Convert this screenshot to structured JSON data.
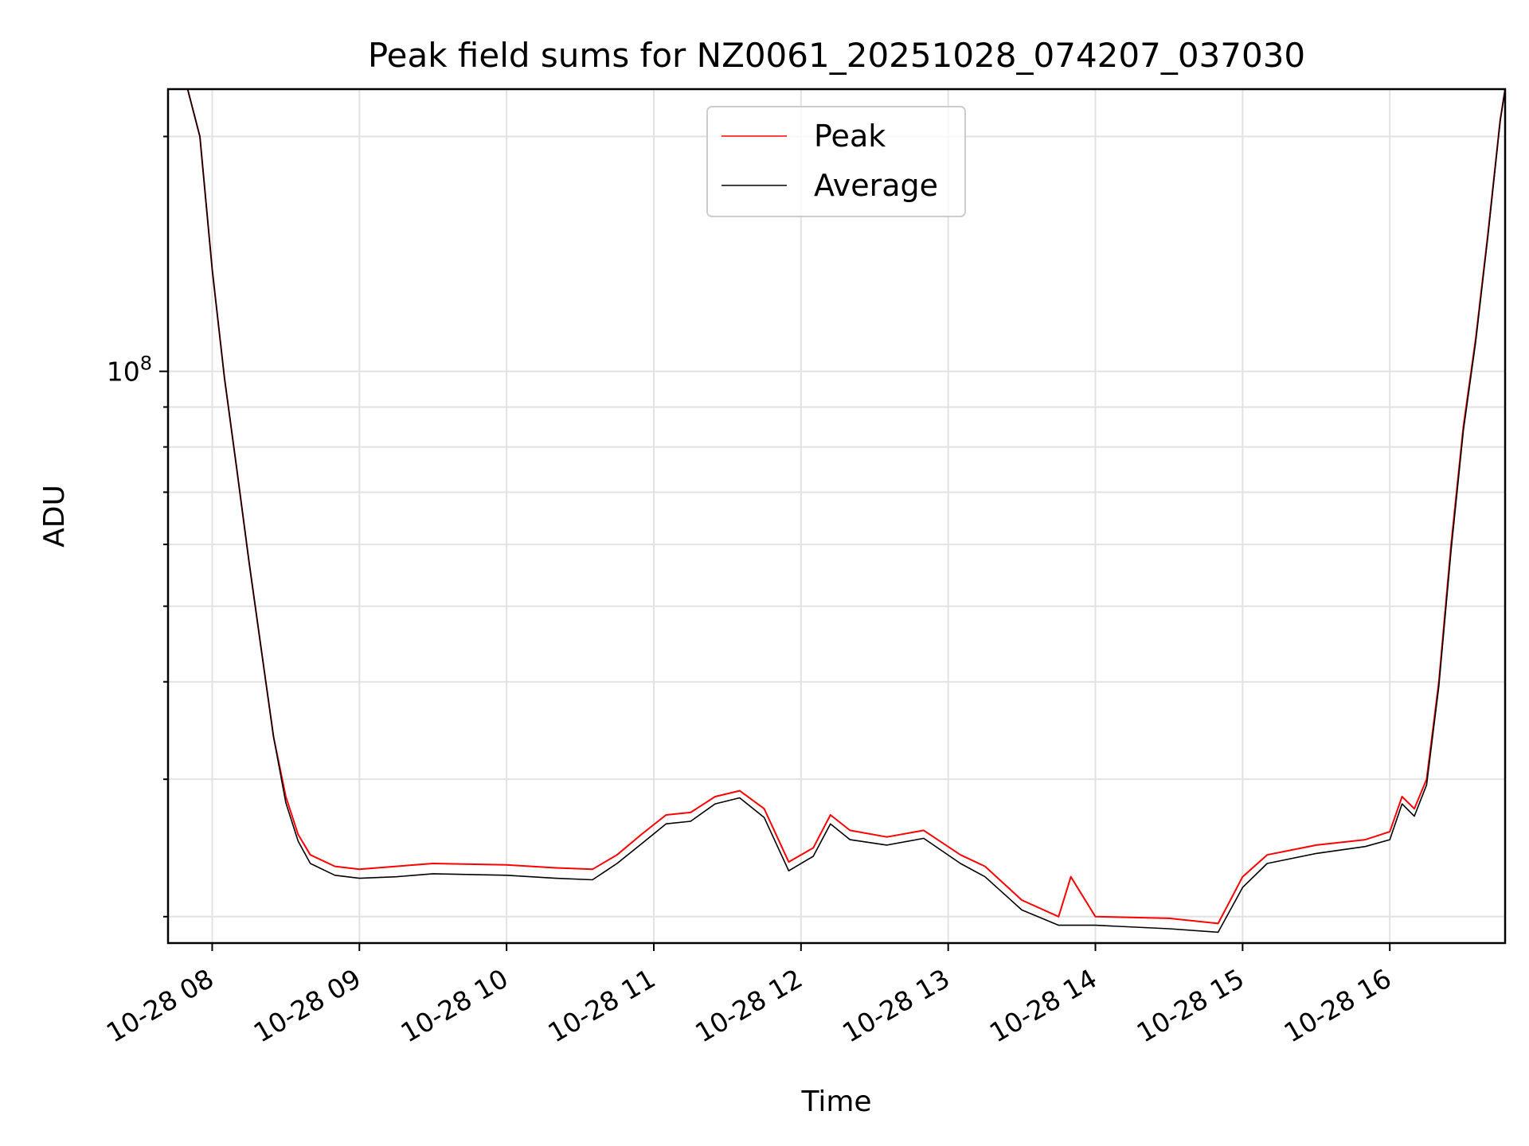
{
  "chart_data": {
    "type": "line",
    "title": "Peak field sums for NZ0061_20251028_074207_037030",
    "xlabel": "Time",
    "ylabel": "ADU",
    "y_scale": "log",
    "ylim": [
      18500000,
      230000000
    ],
    "xlim": [
      "2025-10-28T07:42:00",
      "2025-10-28T16:47:00"
    ],
    "x_ticks": [
      {
        "x": "2025-10-28T08:00",
        "label": "10-28 08"
      },
      {
        "x": "2025-10-28T09:00",
        "label": "10-28 09"
      },
      {
        "x": "2025-10-28T10:00",
        "label": "10-28 10"
      },
      {
        "x": "2025-10-28T11:00",
        "label": "10-28 11"
      },
      {
        "x": "2025-10-28T12:00",
        "label": "10-28 12"
      },
      {
        "x": "2025-10-28T13:00",
        "label": "10-28 13"
      },
      {
        "x": "2025-10-28T14:00",
        "label": "10-28 14"
      },
      {
        "x": "2025-10-28T15:00",
        "label": "10-28 15"
      },
      {
        "x": "2025-10-28T16:00",
        "label": "10-28 16"
      }
    ],
    "y_major_ticks": [
      {
        "value": 100000000,
        "base": "10",
        "exponent": "8"
      }
    ],
    "y_minor_ticks": [
      20000000,
      30000000,
      40000000,
      50000000,
      60000000,
      70000000,
      80000000,
      90000000,
      200000000
    ],
    "grid": true,
    "legend": {
      "position": "upper center"
    },
    "series": [
      {
        "name": "Peak",
        "color": "#ff0000",
        "points": [
          [
            "2025-10-28T07:50",
            230000000
          ],
          [
            "2025-10-28T07:55",
            200000000
          ],
          [
            "2025-10-28T08:00",
            135000000
          ],
          [
            "2025-10-28T08:05",
            98000000
          ],
          [
            "2025-10-28T08:10",
            75000000
          ],
          [
            "2025-10-28T08:15",
            57000000
          ],
          [
            "2025-10-28T08:20",
            44000000
          ],
          [
            "2025-10-28T08:25",
            34000000
          ],
          [
            "2025-10-28T08:30",
            28500000
          ],
          [
            "2025-10-28T08:35",
            25500000
          ],
          [
            "2025-10-28T08:40",
            24000000
          ],
          [
            "2025-10-28T08:50",
            23200000
          ],
          [
            "2025-10-28T09:00",
            23000000
          ],
          [
            "2025-10-28T09:15",
            23200000
          ],
          [
            "2025-10-28T09:30",
            23400000
          ],
          [
            "2025-10-28T10:00",
            23300000
          ],
          [
            "2025-10-28T10:20",
            23100000
          ],
          [
            "2025-10-28T10:35",
            23000000
          ],
          [
            "2025-10-28T10:45",
            24000000
          ],
          [
            "2025-10-28T10:55",
            25500000
          ],
          [
            "2025-10-28T11:05",
            27000000
          ],
          [
            "2025-10-28T11:15",
            27200000
          ],
          [
            "2025-10-28T11:25",
            28500000
          ],
          [
            "2025-10-28T11:35",
            29000000
          ],
          [
            "2025-10-28T11:45",
            27500000
          ],
          [
            "2025-10-28T11:55",
            23500000
          ],
          [
            "2025-10-28T12:05",
            24500000
          ],
          [
            "2025-10-28T12:12",
            27000000
          ],
          [
            "2025-10-28T12:20",
            25800000
          ],
          [
            "2025-10-28T12:35",
            25300000
          ],
          [
            "2025-10-28T12:50",
            25800000
          ],
          [
            "2025-10-28T13:05",
            24000000
          ],
          [
            "2025-10-28T13:15",
            23200000
          ],
          [
            "2025-10-28T13:30",
            21000000
          ],
          [
            "2025-10-28T13:45",
            20000000
          ],
          [
            "2025-10-28T13:50",
            22500000
          ],
          [
            "2025-10-28T14:00",
            20000000
          ],
          [
            "2025-10-28T14:30",
            19900000
          ],
          [
            "2025-10-28T14:50",
            19600000
          ],
          [
            "2025-10-28T15:00",
            22500000
          ],
          [
            "2025-10-28T15:10",
            24000000
          ],
          [
            "2025-10-28T15:30",
            24700000
          ],
          [
            "2025-10-28T15:50",
            25100000
          ],
          [
            "2025-10-28T16:00",
            25700000
          ],
          [
            "2025-10-28T16:05",
            28500000
          ],
          [
            "2025-10-28T16:10",
            27500000
          ],
          [
            "2025-10-28T16:15",
            30000000
          ],
          [
            "2025-10-28T16:20",
            40000000
          ],
          [
            "2025-10-28T16:25",
            60000000
          ],
          [
            "2025-10-28T16:30",
            85000000
          ],
          [
            "2025-10-28T16:35",
            110000000
          ],
          [
            "2025-10-28T16:40",
            150000000
          ],
          [
            "2025-10-28T16:45",
            210000000
          ],
          [
            "2025-10-28T16:47",
            230000000
          ]
        ]
      },
      {
        "name": "Average",
        "color": "#000000",
        "points": [
          [
            "2025-10-28T07:50",
            230000000
          ],
          [
            "2025-10-28T07:55",
            200000000
          ],
          [
            "2025-10-28T08:00",
            135000000
          ],
          [
            "2025-10-28T08:05",
            98000000
          ],
          [
            "2025-10-28T08:10",
            75000000
          ],
          [
            "2025-10-28T08:15",
            57000000
          ],
          [
            "2025-10-28T08:20",
            44000000
          ],
          [
            "2025-10-28T08:25",
            34000000
          ],
          [
            "2025-10-28T08:30",
            28000000
          ],
          [
            "2025-10-28T08:35",
            25000000
          ],
          [
            "2025-10-28T08:40",
            23400000
          ],
          [
            "2025-10-28T08:50",
            22600000
          ],
          [
            "2025-10-28T09:00",
            22400000
          ],
          [
            "2025-10-28T09:15",
            22500000
          ],
          [
            "2025-10-28T09:30",
            22700000
          ],
          [
            "2025-10-28T10:00",
            22600000
          ],
          [
            "2025-10-28T10:20",
            22400000
          ],
          [
            "2025-10-28T10:35",
            22300000
          ],
          [
            "2025-10-28T10:45",
            23400000
          ],
          [
            "2025-10-28T10:55",
            24800000
          ],
          [
            "2025-10-28T11:05",
            26300000
          ],
          [
            "2025-10-28T11:15",
            26500000
          ],
          [
            "2025-10-28T11:25",
            27900000
          ],
          [
            "2025-10-28T11:35",
            28400000
          ],
          [
            "2025-10-28T11:45",
            26800000
          ],
          [
            "2025-10-28T11:55",
            22900000
          ],
          [
            "2025-10-28T12:05",
            23900000
          ],
          [
            "2025-10-28T12:12",
            26300000
          ],
          [
            "2025-10-28T12:20",
            25100000
          ],
          [
            "2025-10-28T12:35",
            24700000
          ],
          [
            "2025-10-28T12:50",
            25200000
          ],
          [
            "2025-10-28T13:05",
            23400000
          ],
          [
            "2025-10-28T13:15",
            22500000
          ],
          [
            "2025-10-28T13:30",
            20400000
          ],
          [
            "2025-10-28T13:45",
            19500000
          ],
          [
            "2025-10-28T14:00",
            19500000
          ],
          [
            "2025-10-28T14:30",
            19300000
          ],
          [
            "2025-10-28T14:50",
            19100000
          ],
          [
            "2025-10-28T15:00",
            21800000
          ],
          [
            "2025-10-28T15:10",
            23400000
          ],
          [
            "2025-10-28T15:30",
            24100000
          ],
          [
            "2025-10-28T15:50",
            24600000
          ],
          [
            "2025-10-28T16:00",
            25100000
          ],
          [
            "2025-10-28T16:05",
            27900000
          ],
          [
            "2025-10-28T16:10",
            26900000
          ],
          [
            "2025-10-28T16:15",
            29500000
          ],
          [
            "2025-10-28T16:20",
            39500000
          ],
          [
            "2025-10-28T16:25",
            59000000
          ],
          [
            "2025-10-28T16:30",
            84000000
          ],
          [
            "2025-10-28T16:35",
            109000000
          ],
          [
            "2025-10-28T16:40",
            149000000
          ],
          [
            "2025-10-28T16:45",
            209000000
          ],
          [
            "2025-10-28T16:47",
            230000000
          ]
        ]
      }
    ]
  }
}
